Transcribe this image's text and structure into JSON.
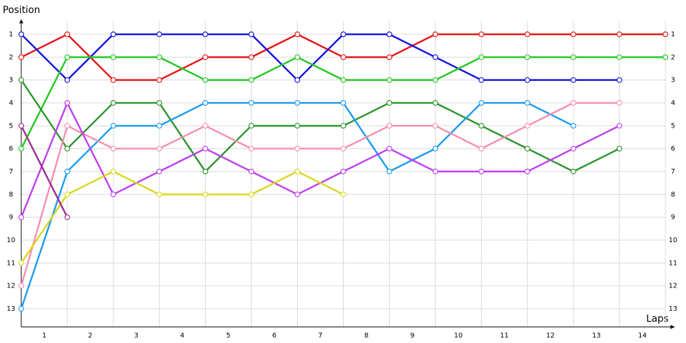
{
  "chart_data": {
    "type": "line",
    "y_title": "Position",
    "x_title": "Laps",
    "x": [
      0,
      1,
      2,
      3,
      4,
      5,
      6,
      7,
      8,
      9,
      10,
      11,
      12,
      13,
      14
    ],
    "xlim": [
      0,
      14.2
    ],
    "xticks": [
      {
        "value": 0.5,
        "label": "1"
      },
      {
        "value": 1.5,
        "label": "2"
      },
      {
        "value": 2.5,
        "label": "3"
      },
      {
        "value": 3.5,
        "label": "4"
      },
      {
        "value": 4.5,
        "label": "5"
      },
      {
        "value": 5.5,
        "label": "6"
      },
      {
        "value": 6.5,
        "label": "7"
      },
      {
        "value": 7.5,
        "label": "8"
      },
      {
        "value": 8.5,
        "label": "9"
      },
      {
        "value": 9.5,
        "label": "10"
      },
      {
        "value": 10.5,
        "label": "11"
      },
      {
        "value": 11.5,
        "label": "12"
      },
      {
        "value": 12.5,
        "label": "13"
      },
      {
        "value": 13.5,
        "label": "14"
      }
    ],
    "ylim": [
      0.6,
      13.8
    ],
    "y_inverted": true,
    "yticks": [
      1,
      2,
      3,
      4,
      5,
      6,
      7,
      8,
      9,
      10,
      11,
      12,
      13
    ],
    "grid": true,
    "series": [
      {
        "color": "#e81414",
        "values": [
          2,
          1,
          3,
          3,
          2,
          2,
          1,
          2,
          2,
          1,
          1,
          1,
          1,
          1,
          1
        ]
      },
      {
        "color": "#1414e0",
        "values": [
          1,
          3,
          1,
          1,
          1,
          1,
          3,
          1,
          1,
          2,
          3,
          3,
          3,
          3,
          null
        ]
      },
      {
        "color": "#22c822",
        "values": [
          6,
          2,
          2,
          2,
          3,
          3,
          2,
          3,
          3,
          3,
          2,
          2,
          2,
          2,
          2
        ]
      },
      {
        "color": "#2e962e",
        "values": [
          3,
          6,
          4,
          4,
          7,
          5,
          5,
          5,
          4,
          4,
          5,
          6,
          7,
          6,
          null
        ]
      },
      {
        "color": "#1e9cf0",
        "values": [
          13,
          7,
          5,
          5,
          4,
          4,
          4,
          4,
          7,
          6,
          4,
          4,
          5,
          null,
          null
        ]
      },
      {
        "color": "#f890b0",
        "values": [
          12,
          5,
          6,
          6,
          5,
          6,
          6,
          6,
          5,
          5,
          6,
          5,
          4,
          4,
          null
        ]
      },
      {
        "color": "#c040f0",
        "values": [
          9,
          4,
          8,
          7,
          6,
          7,
          8,
          7,
          6,
          7,
          7,
          7,
          6,
          5,
          null
        ]
      },
      {
        "color": "#d8d820",
        "values": [
          11,
          8,
          7,
          8,
          8,
          8,
          7,
          8,
          null,
          null,
          null,
          null,
          null,
          null,
          null
        ]
      },
      {
        "color": "#a03090",
        "values": [
          5,
          9,
          null,
          null,
          null,
          null,
          null,
          null,
          null,
          null,
          null,
          null,
          null,
          null,
          null
        ]
      }
    ]
  }
}
